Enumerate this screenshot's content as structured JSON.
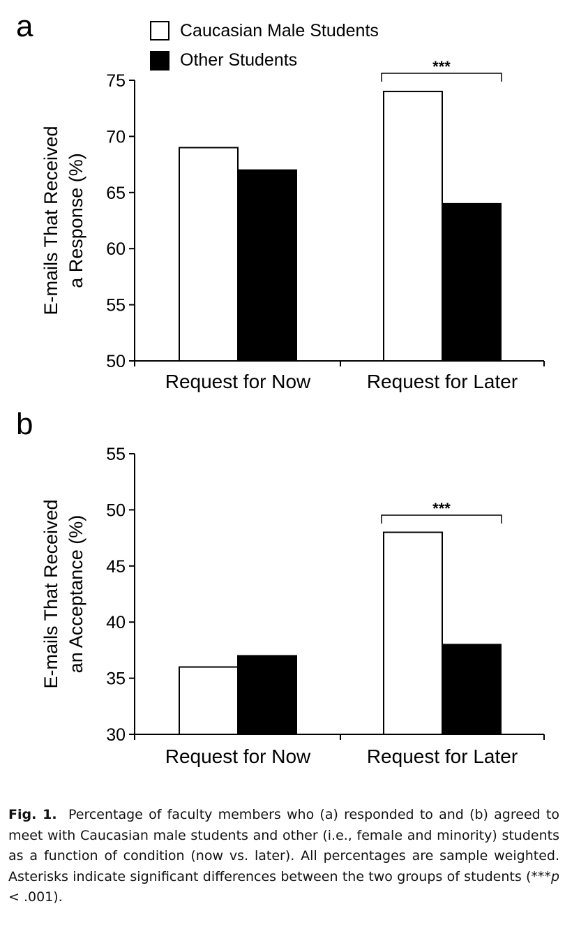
{
  "legend": {
    "items": [
      {
        "label": "Caucasian Male Students",
        "fill": "#ffffff"
      },
      {
        "label": "Other Students",
        "fill": "#000000"
      }
    ]
  },
  "chart_data": [
    {
      "panel_label": "a",
      "type": "bar",
      "categories": [
        "Request for Now",
        "Request for Later"
      ],
      "series": [
        {
          "name": "Caucasian Male Students",
          "values": [
            69,
            74
          ],
          "color": "#ffffff"
        },
        {
          "name": "Other Students",
          "values": [
            67,
            64
          ],
          "color": "#000000"
        }
      ],
      "ylabel_lines": [
        "E-mails That Received",
        "a Response (%)"
      ],
      "ylim": [
        50,
        75
      ],
      "yticks": [
        50,
        55,
        60,
        65,
        70,
        75
      ],
      "significance": [
        {
          "category": "Request for Later",
          "label": "***"
        }
      ]
    },
    {
      "panel_label": "b",
      "type": "bar",
      "categories": [
        "Request for Now",
        "Request for Later"
      ],
      "series": [
        {
          "name": "Caucasian Male Students",
          "values": [
            36,
            48
          ],
          "color": "#ffffff"
        },
        {
          "name": "Other Students",
          "values": [
            37,
            38
          ],
          "color": "#000000"
        }
      ],
      "ylabel_lines": [
        "E-mails That Received",
        "an Acceptance (%)"
      ],
      "ylim": [
        30,
        55
      ],
      "yticks": [
        30,
        35,
        40,
        45,
        50,
        55
      ],
      "significance": [
        {
          "category": "Request for Later",
          "label": "***"
        }
      ]
    }
  ],
  "caption": {
    "label": "Fig. 1.",
    "text_before_p": "Percentage of faculty members who (a) responded to and (b) agreed to meet with Caucasian male students and other (i.e., female and minority) students as a function of condition (now vs. later). All percentages are sample weighted. Asterisks indicate significant differences between the two groups of students (***",
    "p_symbol": "p",
    "text_after_p": " < .001)."
  }
}
